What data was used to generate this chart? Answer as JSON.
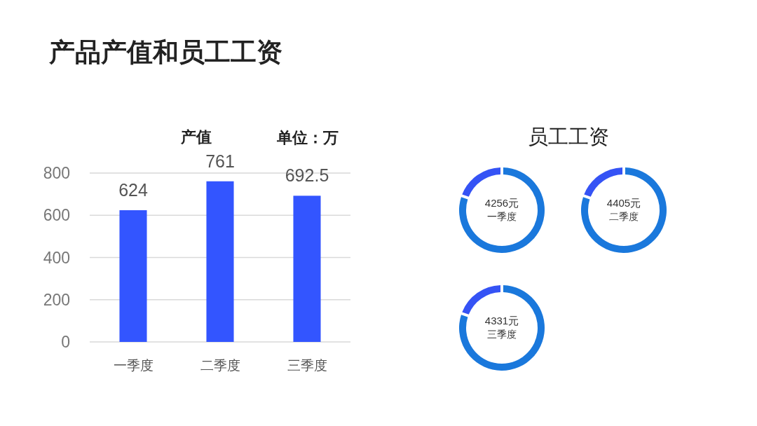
{
  "chart_data": [
    {
      "type": "other",
      "title": "产品产值和员工工资"
    },
    {
      "type": "bar",
      "title": "产值",
      "annotations": [
        "单位：万"
      ],
      "categories": [
        "一季度",
        "二季度",
        "三季度"
      ],
      "values": [
        624,
        761,
        692.5
      ],
      "color": "#3355ff",
      "ylim": [
        0,
        800
      ],
      "yticks": [
        0,
        200,
        400,
        600,
        800
      ],
      "grid": "y",
      "data_labels": true
    },
    {
      "type": "other",
      "title": "员工工资"
    },
    {
      "type": "donut",
      "categories": [
        null,
        null
      ],
      "values": [
        81,
        19
      ],
      "colors": [
        "#1a78dc",
        "#3553f5"
      ],
      "annotations": [
        "4256元",
        "一季度"
      ]
    },
    {
      "type": "donut",
      "categories": [
        null,
        null
      ],
      "values": [
        81,
        19
      ],
      "colors": [
        "#1a78dc",
        "#3553f5"
      ],
      "annotations": [
        "4405元",
        "二季度"
      ]
    },
    {
      "type": "donut",
      "categories": [
        null,
        null
      ],
      "values": [
        81,
        19
      ],
      "colors": [
        "#1a78dc",
        "#3553f5"
      ],
      "annotations": [
        "4331元",
        "三季度"
      ]
    }
  ]
}
